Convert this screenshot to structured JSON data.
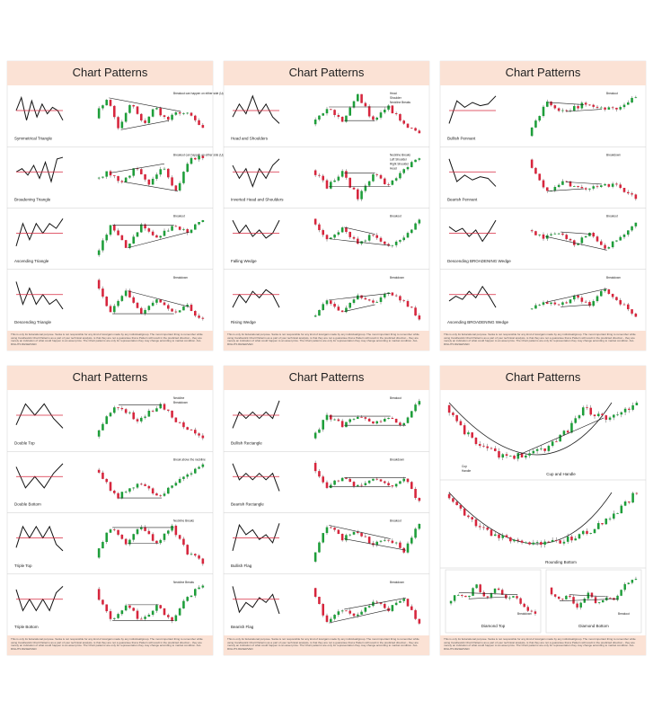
{
  "panels": [
    {
      "title": "Chart Patterns",
      "patterns": [
        {
          "name": "Symmetrical Triangle",
          "notes": [
            "Breakout can happen on either side (Upward/Downward)"
          ]
        },
        {
          "name": "Broadening Triangle",
          "notes": [
            "Breakout can happen on either side (Upward/Downward)"
          ]
        },
        {
          "name": "Ascending Triangle",
          "notes": [
            "Breakout"
          ]
        },
        {
          "name": "Descending Triangle",
          "notes": [
            "Breakdown"
          ]
        }
      ],
      "disclaimer": "This is only for Educational purpose. Santa is not responsible for any kind of loss/gain made by any individual/group. The most important thing to remember while using Candlestick Chart Patterns as a part of your technical analysis, is that they are not a guarantee that a Pattern will result in the predicted direction - they are merely an indication of what could happen to an asset price. The Chart patterns are only for representation they may change according to market condition. ALL RIGHTS RESERVED"
    },
    {
      "title": "Chart Patterns",
      "patterns": [
        {
          "name": "Head and Shoulders",
          "notes": [
            "Head",
            "Shoulder",
            "Neckline Breaks"
          ]
        },
        {
          "name": "Inverted Head and Shoulders",
          "notes": [
            "Neckline Breaks",
            "Left Shoulder",
            "Right Shoulder",
            "Head"
          ]
        },
        {
          "name": "Falling Wedge",
          "notes": [
            "Breakout"
          ]
        },
        {
          "name": "Rising Wedge",
          "notes": [
            "Breakdown"
          ]
        }
      ],
      "disclaimer": "This is only for Educational purpose. Santa is not responsible for any kind of loss/gain made by any individual/group. The most important thing to remember while using Candlestick Chart Patterns as a part of your technical analysis, is that they are not a guarantee that a Pattern will result in the predicted direction - they are merely an indication of what could happen to an asset price. The Chart patterns are only for representation they may change according to market condition. ALL RIGHTS RESERVED"
    },
    {
      "title": "Chart Patterns",
      "patterns": [
        {
          "name": "Bullish Pennant",
          "notes": [
            "Breakout"
          ]
        },
        {
          "name": "Bearish Pennant",
          "notes": [
            "Breakdown"
          ]
        },
        {
          "name": "Descending BROADENING Wedge",
          "notes": [
            "Breakout"
          ]
        },
        {
          "name": "Ascending BROADENING Wedge",
          "notes": [
            "Breakdown"
          ]
        }
      ],
      "disclaimer": "This is only for Educational purpose. Santa is not responsible for any kind of loss/gain made by any individual/group. The most important thing to remember while using Candlestick Chart Patterns as a part of your technical analysis, is that they are not a guarantee that a Pattern will result in the predicted direction - they are merely an indication of what could happen to an asset price. The Chart patterns are only for representation they may change according to market condition. ALL RIGHTS RESERVED"
    },
    {
      "title": "Chart Patterns",
      "patterns": [
        {
          "name": "Double Top",
          "notes": [
            "Neckline",
            "Breakdown"
          ]
        },
        {
          "name": "Double Bottom",
          "notes": [
            "Break above the neckline"
          ]
        },
        {
          "name": "Triple Top",
          "notes": [
            "Neckline Breaks"
          ]
        },
        {
          "name": "Triple Bottom",
          "notes": [
            "Neckline Breaks"
          ]
        }
      ],
      "disclaimer": "This is only for Educational purpose. Santa is not responsible for any kind of loss/gain made by any individual/group. The most important thing to remember while using Candlestick Chart Patterns as a part of your technical analysis, is that they are not a guarantee that a Pattern will result in the predicted direction - they are merely an indication of what could happen to an asset price. The Chart patterns are only for representation they may change according to market condition. ALL RIGHTS RESERVED"
    },
    {
      "title": "Chart Patterns",
      "patterns": [
        {
          "name": "Bullish Rectangle",
          "notes": [
            "Breakout"
          ]
        },
        {
          "name": "Bearish Rectangle",
          "notes": [
            "Breakdown"
          ]
        },
        {
          "name": "Bullish Flag",
          "notes": [
            "Breakout"
          ]
        },
        {
          "name": "Bearish Flag",
          "notes": [
            "Breakdown"
          ]
        }
      ],
      "disclaimer": "This is only for Educational purpose. Santa is not responsible for any kind of loss/gain made by any individual/group. The most important thing to remember while using Candlestick Chart Patterns as a part of your technical analysis, is that they are not a guarantee that a Pattern will result in the predicted direction - they are merely an indication of what could happen to an asset price. The Chart patterns are only for representation they may change according to market condition. ALL RIGHTS RESERVED"
    },
    {
      "title": "Chart Patterns",
      "patterns": [
        {
          "name": "Cup and Handle",
          "notes": [
            "Cup",
            "Handle"
          ]
        },
        {
          "name": "Rounding Bottom",
          "notes": []
        },
        {
          "name": "Diamond Top",
          "notes": [
            "Breakdown"
          ]
        },
        {
          "name": "Diamond Bottom",
          "notes": [
            "Breakout"
          ]
        }
      ],
      "disclaimer": "This is only for Educational purpose. Santa is not responsible for any kind of loss/gain made by any individual/group. The most important thing to remember while using Candlestick Chart Patterns as a part of your technical analysis, is that they are not a guarantee that a Pattern will result in the predicted direction - they are merely an indication of what could happen to an asset price. The Chart patterns are only for representation they may change according to market condition. ALL RIGHTS RESERVED"
    }
  ]
}
